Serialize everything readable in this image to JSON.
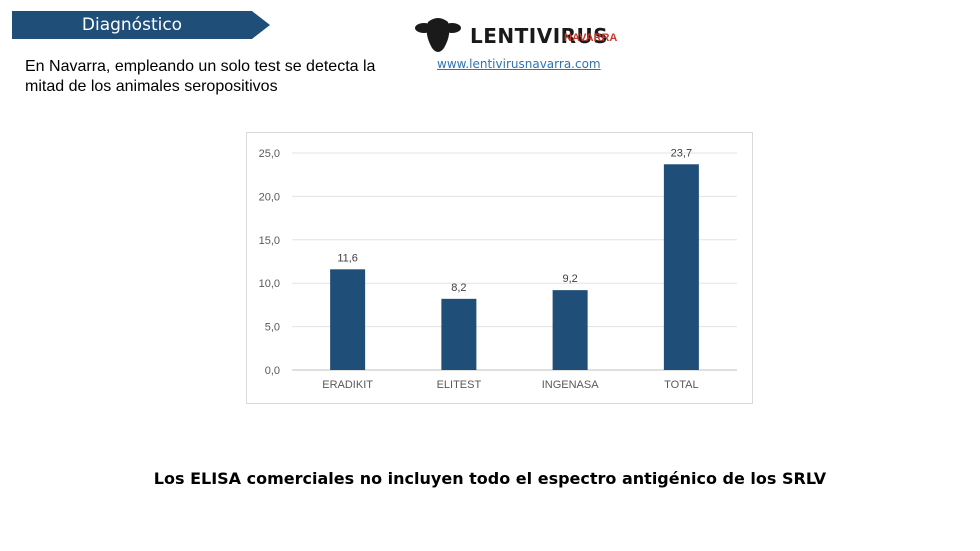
{
  "header": {
    "section_title": "Diagnóstico",
    "logo_text": "LENTIVIRUS",
    "logo_subtext": "NAVARRA",
    "website": "www.lentivirusnavarra.com"
  },
  "intro_text": "En Navarra, empleando un solo test se detecta la mitad de los animales seropositivos",
  "chart_data": {
    "type": "bar",
    "categories": [
      "ERADIKIT",
      "ELITEST",
      "INGENASA",
      "TOTAL"
    ],
    "values": [
      11.6,
      8.2,
      9.2,
      23.7
    ],
    "value_labels": [
      "11,6",
      "8,2",
      "9,2",
      "23,7"
    ],
    "yticks": [
      "0,0",
      "5,0",
      "10,0",
      "15,0",
      "20,0",
      "25,0"
    ],
    "ylim": [
      0,
      25
    ],
    "title": "",
    "xlabel": "",
    "ylabel": "",
    "grid": true,
    "bar_color": "#1f4e79"
  },
  "caption": "Los ELISA comerciales no incluyen todo el espectro antigénico de los SRLV",
  "colors": {
    "banner": "#1f4e79",
    "logo_accent": "#c0392b",
    "link": "#2e74b5"
  }
}
